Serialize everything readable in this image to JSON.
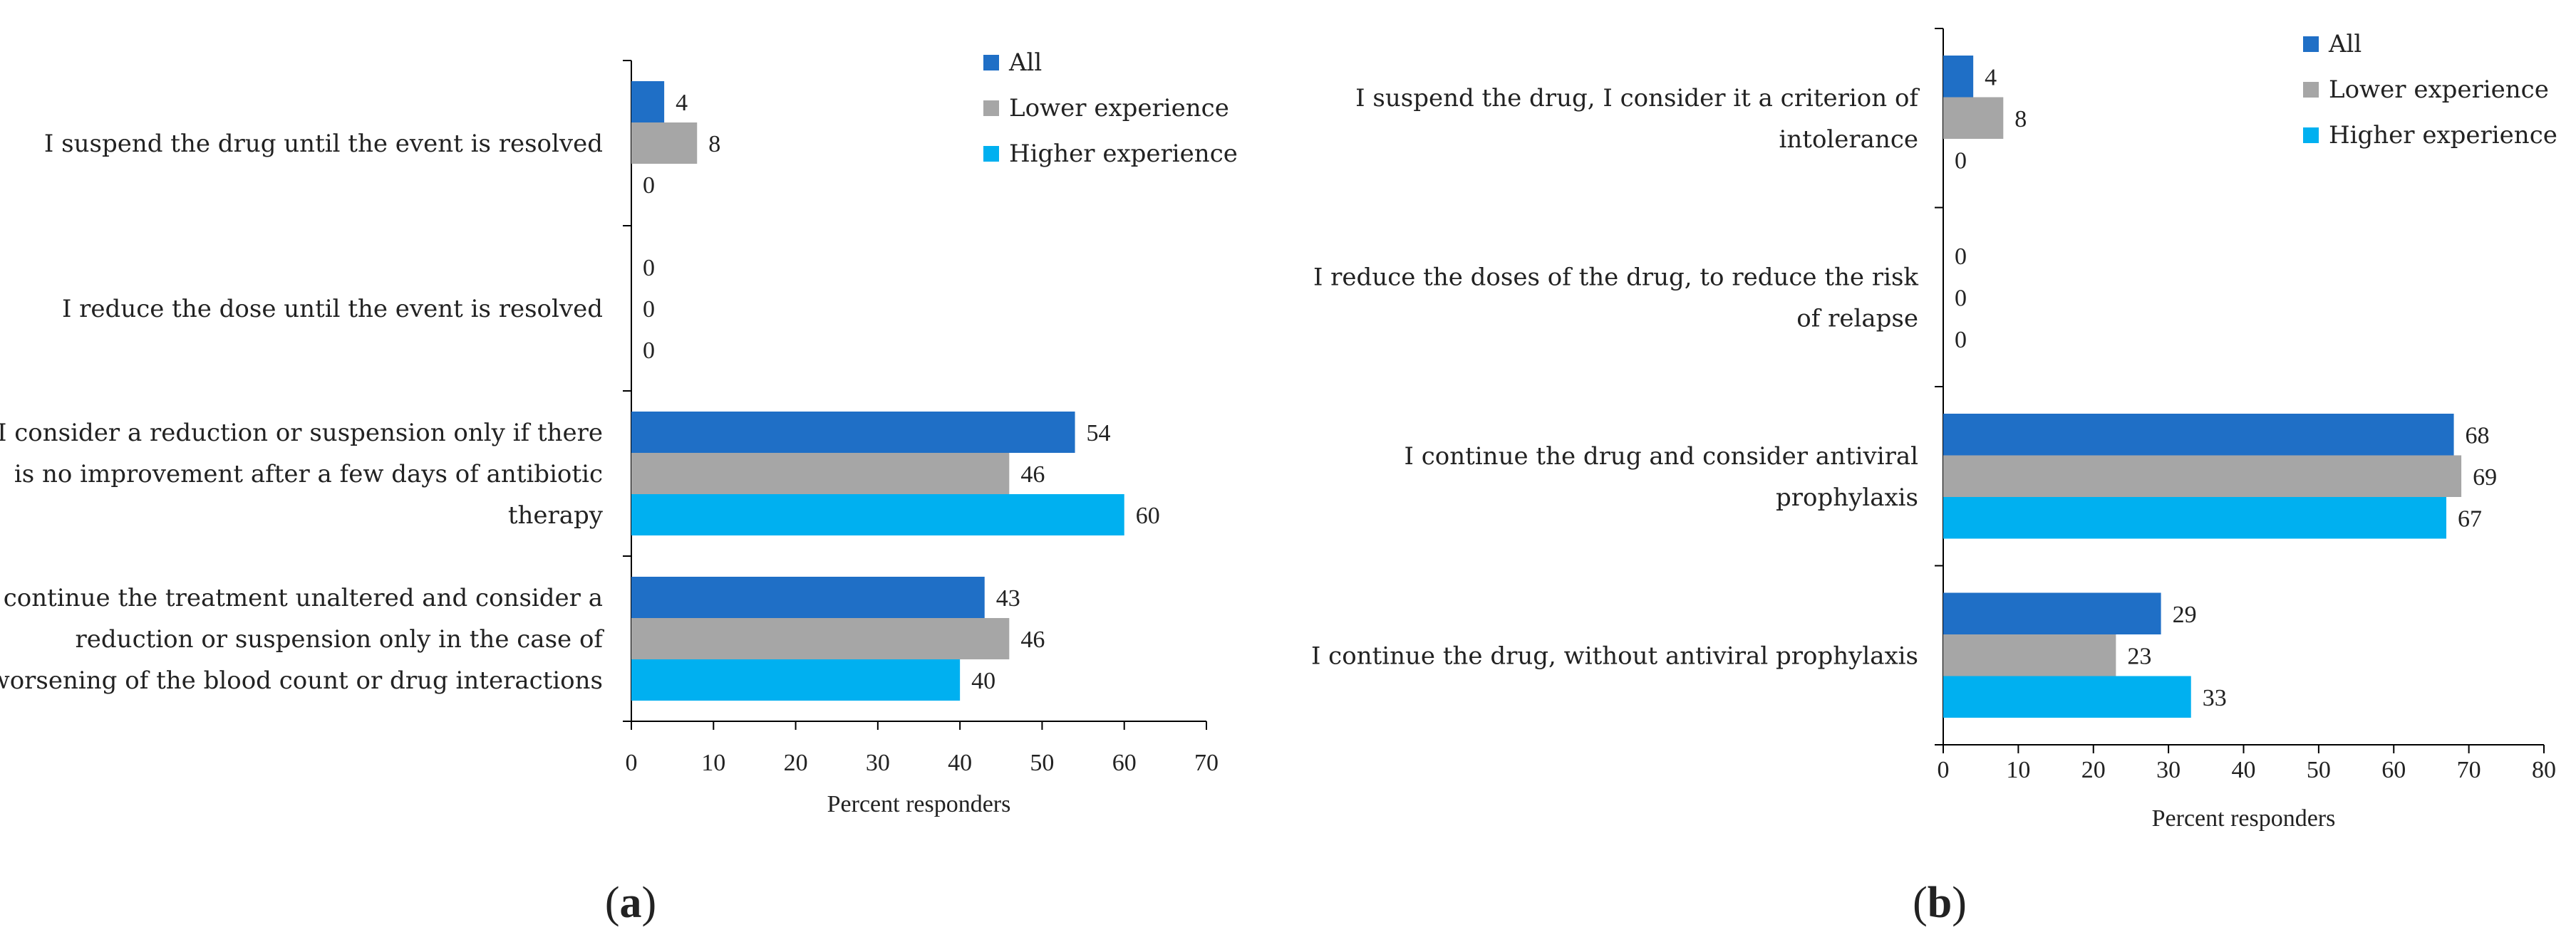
{
  "chart_data": [
    {
      "type": "bar",
      "orientation": "horizontal",
      "panel_label": "a",
      "categories": [
        [
          "I suspend the drug until the event is resolved"
        ],
        [
          "I reduce the dose until the event is resolved"
        ],
        [
          "I consider a reduction or suspension only if there",
          "is no improvement after a few days of antibiotic",
          "therapy"
        ],
        [
          "I continue the treatment unaltered and consider a",
          "reduction or suspension only in the case of",
          "worsening of the blood count or drug interactions"
        ]
      ],
      "series": [
        {
          "name": "All",
          "color": "#1f6fc6",
          "values": [
            4,
            0,
            54,
            43
          ]
        },
        {
          "name": "Lower experience",
          "color": "#a6a6a6",
          "values": [
            8,
            0,
            46,
            46
          ]
        },
        {
          "name": "Higher experience",
          "color": "#00b0f0",
          "values": [
            0,
            0,
            60,
            40
          ]
        }
      ],
      "xlabel": "Percent responders",
      "xlim": [
        0,
        70
      ],
      "xticks": [
        0,
        10,
        20,
        30,
        40,
        50,
        60,
        70
      ],
      "legend_position": "top-right"
    },
    {
      "type": "bar",
      "orientation": "horizontal",
      "panel_label": "b",
      "categories": [
        [
          "I suspend the drug, I consider it a criterion of",
          "intolerance"
        ],
        [
          "I reduce the doses of the drug, to reduce the risk",
          "of relapse"
        ],
        [
          "I continue the drug and consider antiviral",
          "prophylaxis"
        ],
        [
          "I continue the drug, without antiviral prophylaxis"
        ]
      ],
      "series": [
        {
          "name": "All",
          "color": "#1f6fc6",
          "values": [
            4,
            0,
            68,
            29
          ]
        },
        {
          "name": "Lower experience",
          "color": "#a6a6a6",
          "values": [
            8,
            0,
            69,
            23
          ]
        },
        {
          "name": "Higher experience",
          "color": "#00b0f0",
          "values": [
            0,
            0,
            67,
            33
          ]
        }
      ],
      "xlabel": "Percent responders",
      "xlim": [
        0,
        80
      ],
      "xticks": [
        0,
        10,
        20,
        30,
        40,
        50,
        60,
        70,
        80
      ],
      "legend_position": "top-right"
    }
  ]
}
